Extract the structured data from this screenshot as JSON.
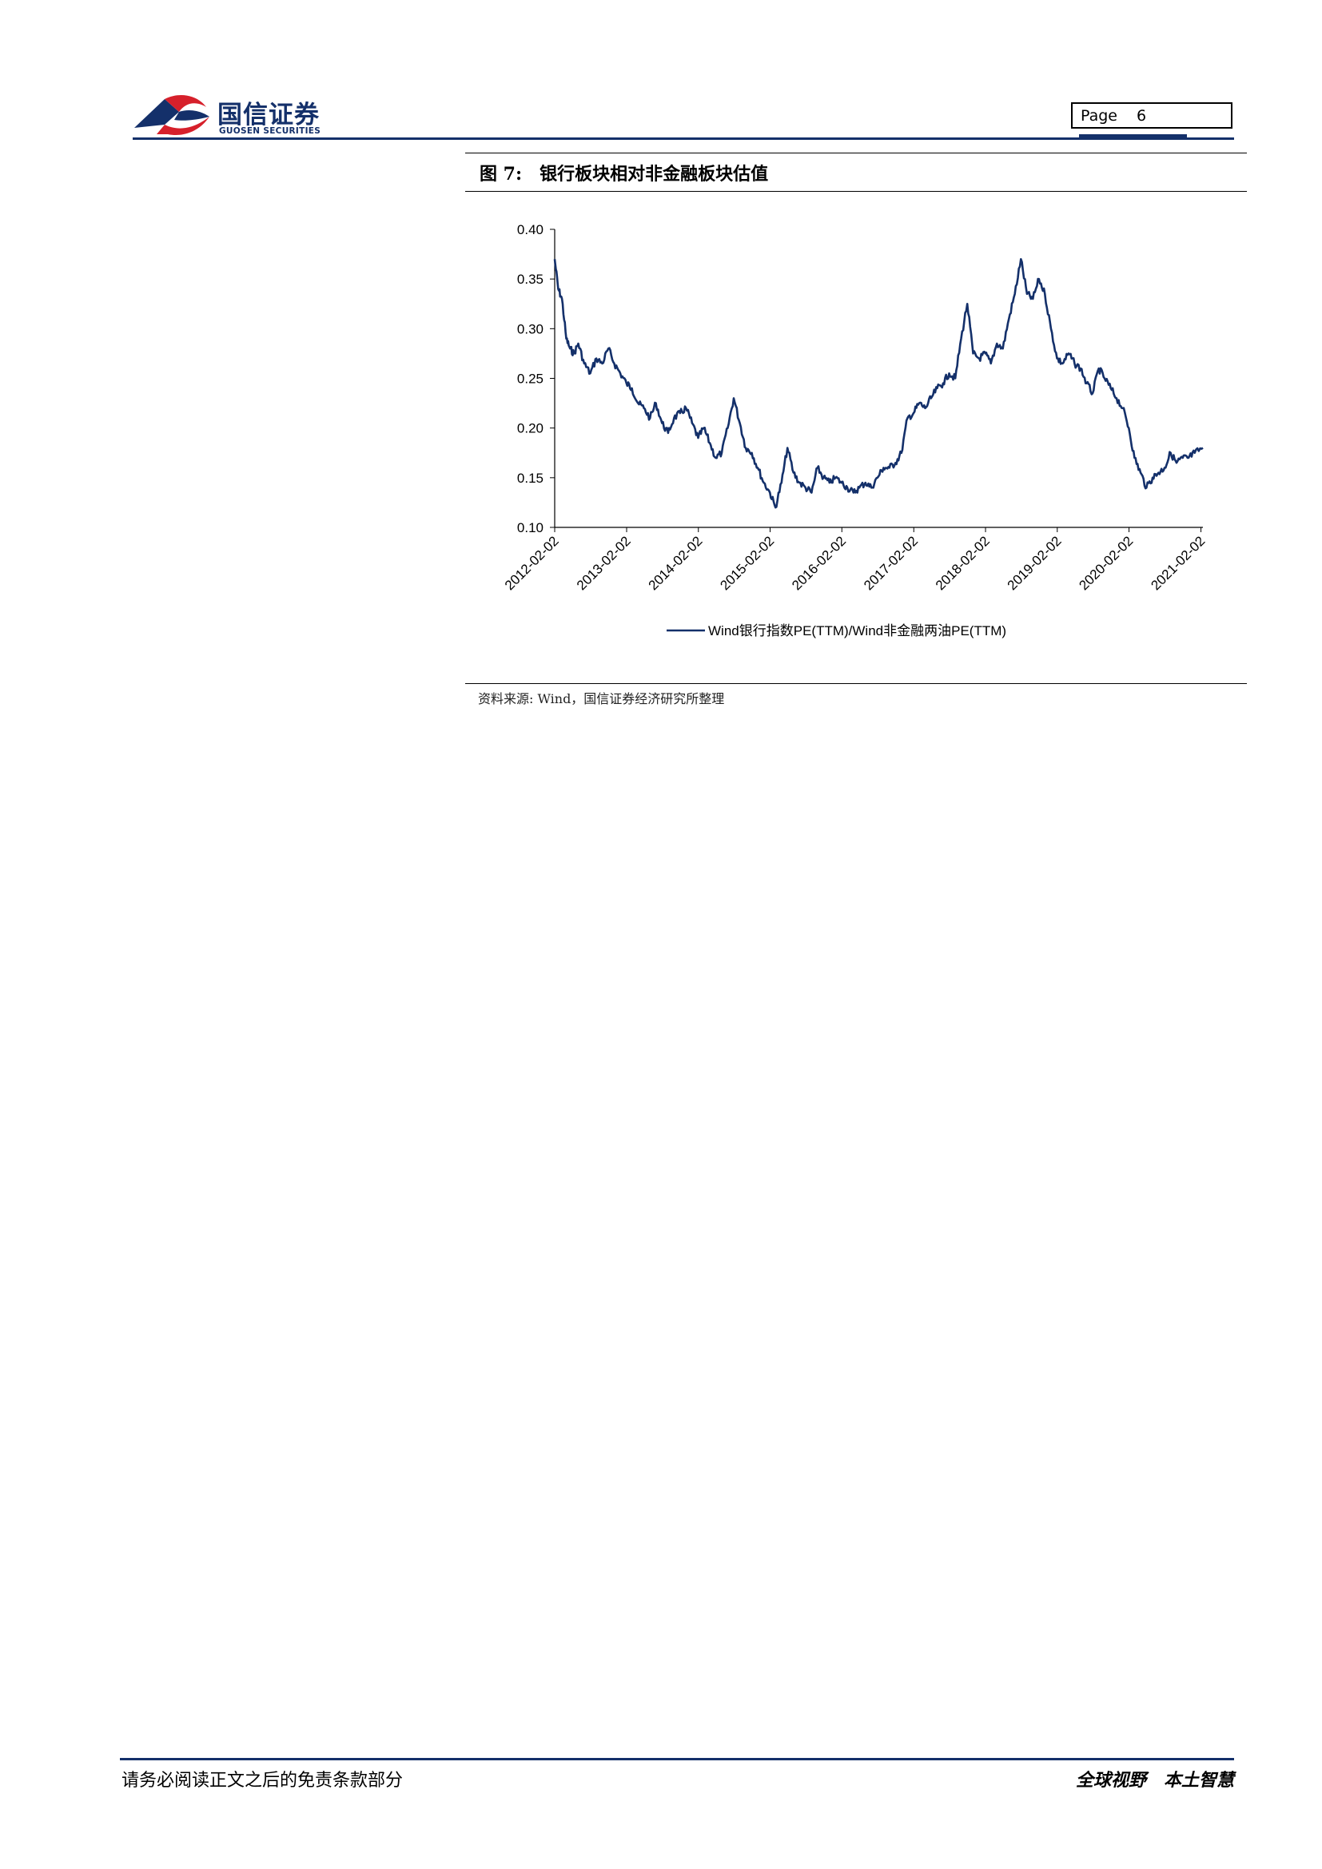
{
  "header": {
    "logo_cn": "国信证券",
    "logo_en": "GUOSEN SECURITIES",
    "page_label": "Page",
    "page_number": "6"
  },
  "colors": {
    "brand_navy": "#14306a",
    "brand_red": "#d6202b",
    "series_line": "#14306a"
  },
  "figure": {
    "number": "图 7:",
    "title": "银行板块相对非金融板块估值",
    "source": "资料来源: Wind，国信证券经济研究所整理"
  },
  "chart_data": {
    "type": "line",
    "title": "",
    "xlabel": "",
    "ylabel": "",
    "ylim": [
      0.1,
      0.4
    ],
    "yticks": [
      "0.10",
      "0.15",
      "0.20",
      "0.25",
      "0.30",
      "0.35",
      "0.40"
    ],
    "xlim": [
      "2012-02-02",
      "2021-02-12"
    ],
    "xticks": [
      "2012-02-02",
      "2013-02-02",
      "2014-02-02",
      "2015-02-02",
      "2016-02-02",
      "2017-02-02",
      "2018-02-02",
      "2019-02-02",
      "2020-02-02",
      "2021-02-02"
    ],
    "legend_position": "bottom",
    "grid": false,
    "series": [
      {
        "name": "Wind银行指数PE(TTM)/Wind非金融两油PE(TTM)",
        "x": [
          "2012-02-02",
          "2012-02-20",
          "2012-03-10",
          "2012-04-01",
          "2012-04-20",
          "2012-05-10",
          "2012-06-01",
          "2012-07-01",
          "2012-08-01",
          "2012-09-01",
          "2012-10-01",
          "2012-11-01",
          "2012-12-01",
          "2013-01-01",
          "2013-02-01",
          "2013-03-01",
          "2013-04-01",
          "2013-05-01",
          "2013-06-01",
          "2013-07-01",
          "2013-08-01",
          "2013-09-01",
          "2013-10-01",
          "2013-11-01",
          "2013-12-01",
          "2014-01-01",
          "2014-02-01",
          "2014-03-01",
          "2014-04-01",
          "2014-05-01",
          "2014-06-01",
          "2014-07-01",
          "2014-08-01",
          "2014-09-01",
          "2014-10-01",
          "2014-11-01",
          "2014-12-01",
          "2015-01-01",
          "2015-02-01",
          "2015-03-01",
          "2015-04-01",
          "2015-05-01",
          "2015-06-01",
          "2015-07-01",
          "2015-08-01",
          "2015-09-01",
          "2015-10-01",
          "2015-11-01",
          "2015-12-01",
          "2016-01-01",
          "2016-02-01",
          "2016-03-01",
          "2016-04-01",
          "2016-05-01",
          "2016-06-01",
          "2016-07-01",
          "2016-08-01",
          "2016-09-01",
          "2016-10-01",
          "2016-11-01",
          "2016-12-01",
          "2017-01-01",
          "2017-02-01",
          "2017-03-01",
          "2017-04-01",
          "2017-05-01",
          "2017-06-01",
          "2017-07-01",
          "2017-08-01",
          "2017-09-01",
          "2017-10-01",
          "2017-11-01",
          "2017-12-01",
          "2018-01-01",
          "2018-02-01",
          "2018-03-01",
          "2018-04-01",
          "2018-05-01",
          "2018-06-01",
          "2018-07-01",
          "2018-08-01",
          "2018-09-01",
          "2018-10-01",
          "2018-11-01",
          "2018-12-01",
          "2019-01-01",
          "2019-02-01",
          "2019-03-01",
          "2019-04-01",
          "2019-05-01",
          "2019-06-01",
          "2019-07-01",
          "2019-08-01",
          "2019-09-01",
          "2019-10-01",
          "2019-11-01",
          "2019-12-01",
          "2020-01-01",
          "2020-02-01",
          "2020-03-01",
          "2020-04-01",
          "2020-05-01",
          "2020-06-01",
          "2020-07-01",
          "2020-08-01",
          "2020-09-01",
          "2020-10-01",
          "2020-11-01",
          "2020-12-01",
          "2021-01-01",
          "2021-02-12"
        ],
        "values": [
          0.37,
          0.34,
          0.33,
          0.29,
          0.28,
          0.275,
          0.285,
          0.265,
          0.255,
          0.27,
          0.265,
          0.28,
          0.265,
          0.255,
          0.245,
          0.24,
          0.225,
          0.22,
          0.21,
          0.225,
          0.205,
          0.195,
          0.21,
          0.215,
          0.22,
          0.205,
          0.19,
          0.2,
          0.185,
          0.17,
          0.175,
          0.2,
          0.23,
          0.205,
          0.18,
          0.175,
          0.16,
          0.145,
          0.135,
          0.12,
          0.145,
          0.18,
          0.155,
          0.145,
          0.14,
          0.135,
          0.16,
          0.15,
          0.145,
          0.15,
          0.145,
          0.14,
          0.135,
          0.14,
          0.145,
          0.14,
          0.15,
          0.16,
          0.16,
          0.165,
          0.175,
          0.21,
          0.215,
          0.225,
          0.22,
          0.23,
          0.24,
          0.245,
          0.255,
          0.25,
          0.29,
          0.325,
          0.275,
          0.27,
          0.275,
          0.265,
          0.285,
          0.28,
          0.31,
          0.335,
          0.37,
          0.335,
          0.33,
          0.35,
          0.335,
          0.3,
          0.27,
          0.265,
          0.275,
          0.265,
          0.26,
          0.245,
          0.235,
          0.26,
          0.25,
          0.24,
          0.23,
          0.22,
          0.2,
          0.17,
          0.155,
          0.14,
          0.15,
          0.155,
          0.16,
          0.175,
          0.165,
          0.17,
          0.17,
          0.175,
          0.18
        ]
      }
    ]
  },
  "footer": {
    "left": "请务必阅读正文之后的免责条款部分",
    "right": "全球视野　本土智慧"
  }
}
